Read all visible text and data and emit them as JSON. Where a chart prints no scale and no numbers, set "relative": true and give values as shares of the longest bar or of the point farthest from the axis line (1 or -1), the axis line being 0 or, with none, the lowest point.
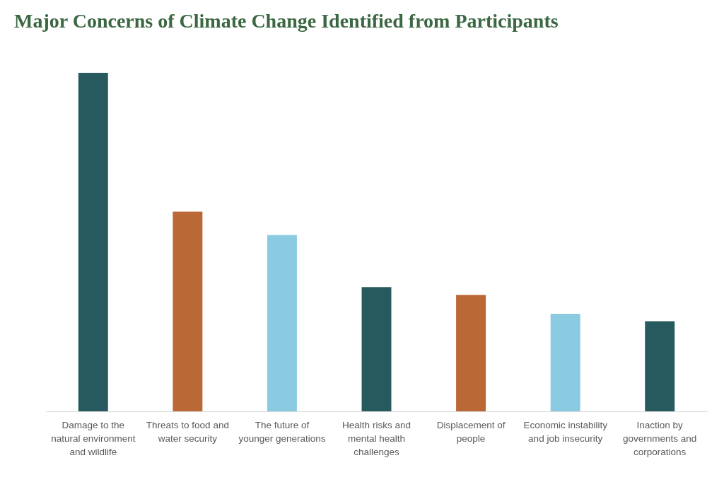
{
  "chart_data": {
    "type": "bar",
    "title": "Major Concerns of Climate Change Identified from Participants",
    "categories": [
      "Damage to the natural environment and wildlife",
      "Threats to food and water security",
      "The future of younger generations",
      "Health risks and mental health challenges",
      "Displacement of people",
      "Economic instability and job insecurity",
      "Inaction by governments and corporations"
    ],
    "values": [
      1,
      0.59,
      0.521,
      0.367,
      0.344,
      0.288,
      0.266
    ],
    "colors": [
      "#275a5e",
      "#b96836",
      "#8bcbe2",
      "#275a5e",
      "#b96836",
      "#8bcbe2",
      "#275a5e"
    ],
    "relative": true
  }
}
